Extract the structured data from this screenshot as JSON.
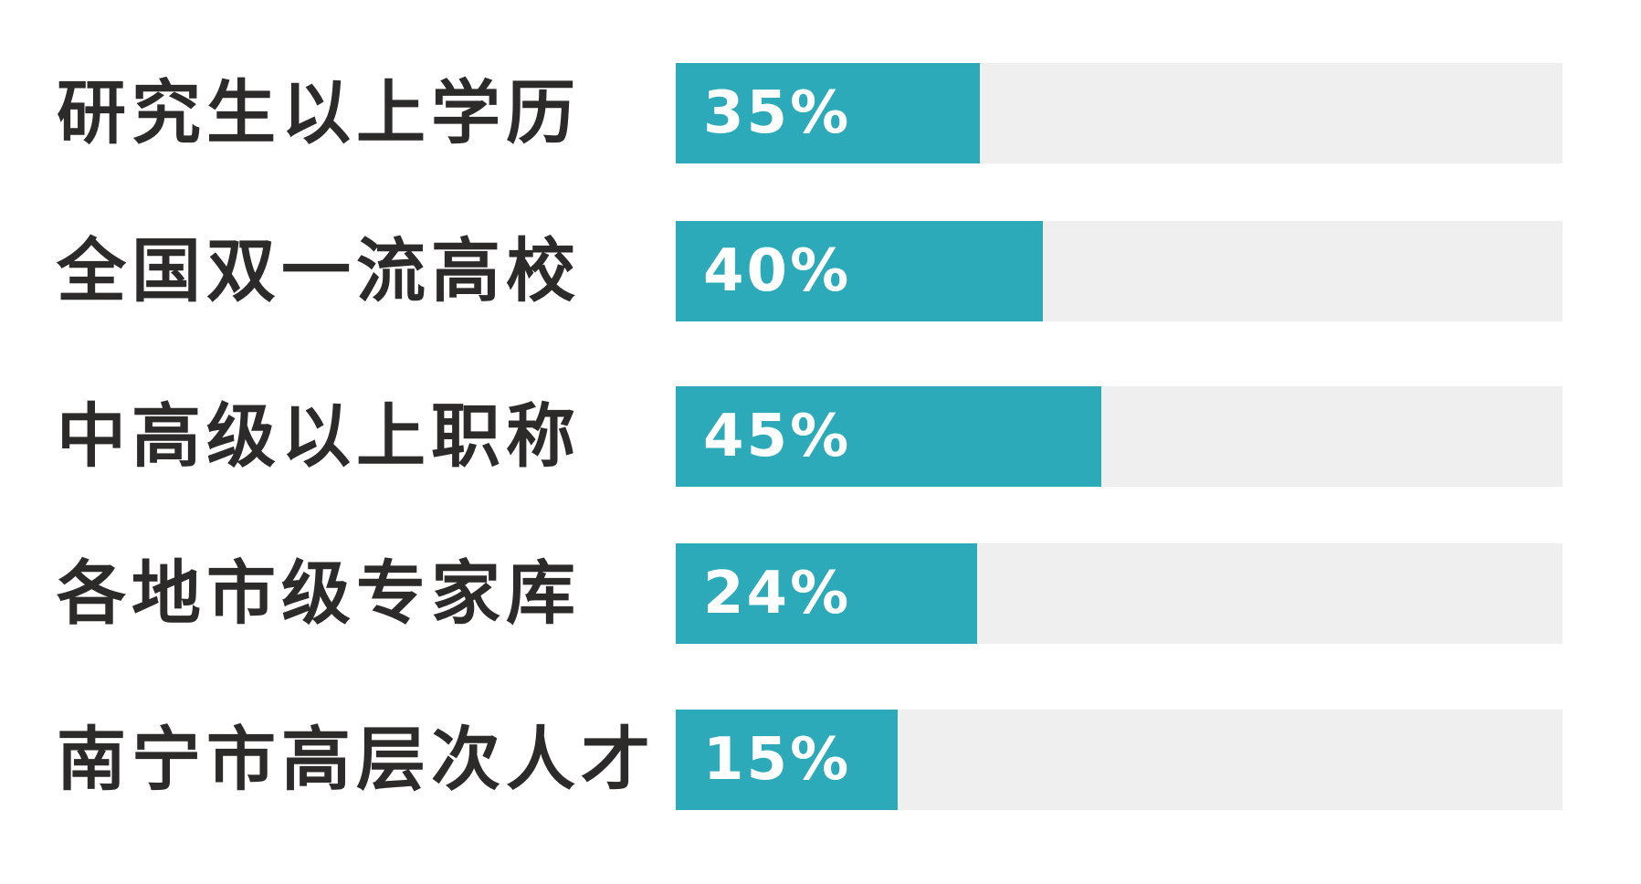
{
  "chart_data": {
    "type": "bar",
    "orientation": "horizontal",
    "colors": {
      "fill": "#2caab9",
      "track": "#efefef",
      "label": "#2d2a2a",
      "value_text": "#ffffff"
    },
    "grid": false,
    "bars": [
      {
        "category": "研究生以上学历",
        "value": 35,
        "label": "35%",
        "fill": 0.343
      },
      {
        "category": "全国双一流高校",
        "value": 40,
        "label": "40%",
        "fill": 0.414
      },
      {
        "category": "中高级以上职称",
        "value": 45,
        "label": "45%",
        "fill": 0.48
      },
      {
        "category": "各地市级专家库",
        "value": 24,
        "label": "24%",
        "fill": 0.34
      },
      {
        "category": "南宁市高层次人才",
        "value": 15,
        "label": "15%",
        "fill": 0.25
      }
    ]
  }
}
